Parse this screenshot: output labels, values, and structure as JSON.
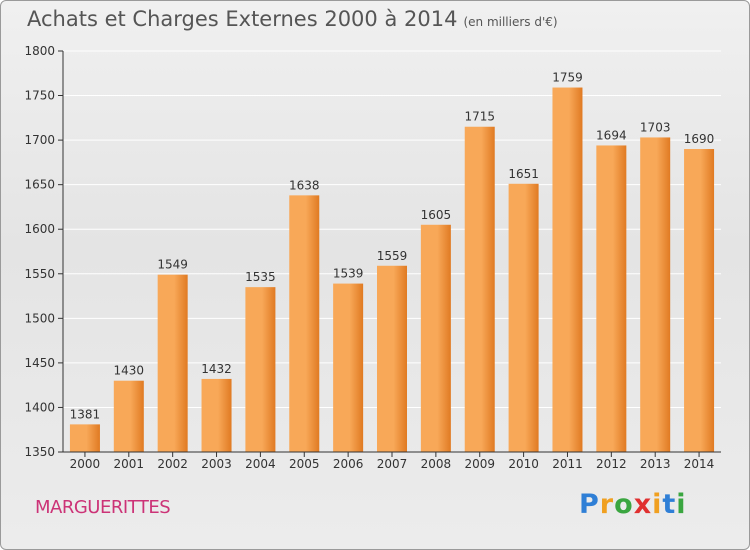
{
  "chart_data": {
    "type": "bar",
    "title": "Achats et Charges Externes 2000 à 2014",
    "subtitle": "(en milliers d'€)",
    "categories": [
      "2000",
      "2001",
      "2002",
      "2003",
      "2004",
      "2005",
      "2006",
      "2007",
      "2008",
      "2009",
      "2010",
      "2011",
      "2012",
      "2013",
      "2014"
    ],
    "values": [
      1381,
      1430,
      1549,
      1432,
      1535,
      1638,
      1539,
      1559,
      1605,
      1715,
      1651,
      1759,
      1694,
      1703,
      1690
    ],
    "ylim": [
      1350,
      1800
    ],
    "yticks": [
      1350,
      1400,
      1450,
      1500,
      1550,
      1600,
      1650,
      1700,
      1750,
      1800
    ],
    "grid": true,
    "legend": "none",
    "colors": {
      "bar_light": "#f8a858",
      "bar_dark": "#e07a22",
      "grid": "#ffffff"
    }
  },
  "footer": {
    "town": "MARGUERITTES",
    "logo": "Proxiti",
    "logo_colors": [
      "#2f7fd6",
      "#f0a020",
      "#3aa640",
      "#e03030",
      "#f0a020",
      "#2f7fd6",
      "#3aa640"
    ]
  }
}
